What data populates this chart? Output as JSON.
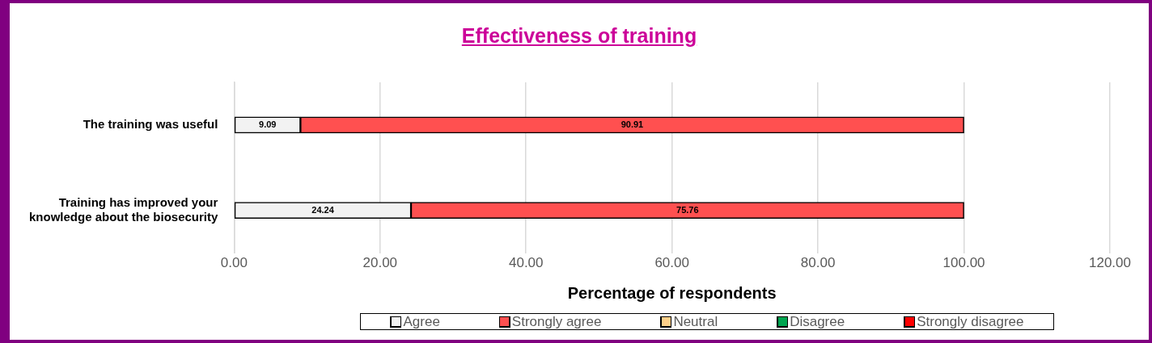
{
  "chart_data": {
    "type": "bar",
    "orientation": "horizontal",
    "stacked": true,
    "title": "Effectiveness of training",
    "xlabel": "Percentage of respondents",
    "categories": [
      "The training was useful",
      "Training has improved your knowledge about the biosecurity"
    ],
    "series": [
      {
        "name": "Agree",
        "color": "#f2f2f2",
        "values": [
          9.09,
          24.24
        ]
      },
      {
        "name": "Strongly agree",
        "color": "#ff5050",
        "values": [
          90.91,
          75.76
        ]
      },
      {
        "name": "Neutral",
        "color": "#ffd08a",
        "values": [
          null,
          null
        ]
      },
      {
        "name": "Disagree",
        "color": "#00a550",
        "values": [
          null,
          null
        ]
      },
      {
        "name": "Strongly disagree",
        "color": "#ff0000",
        "values": [
          null,
          null
        ]
      }
    ],
    "xlim": [
      0,
      120
    ],
    "xticks": [
      {
        "value": 0,
        "label": "0.00"
      },
      {
        "value": 20,
        "label": "20.00"
      },
      {
        "value": 40,
        "label": "40.00"
      },
      {
        "value": 60,
        "label": "60.00"
      },
      {
        "value": 80,
        "label": "80.00"
      },
      {
        "value": 100,
        "label": "100.00"
      },
      {
        "value": 120,
        "label": "120.00"
      }
    ],
    "grid": "x",
    "legend": "bottom",
    "data_labels": true
  }
}
